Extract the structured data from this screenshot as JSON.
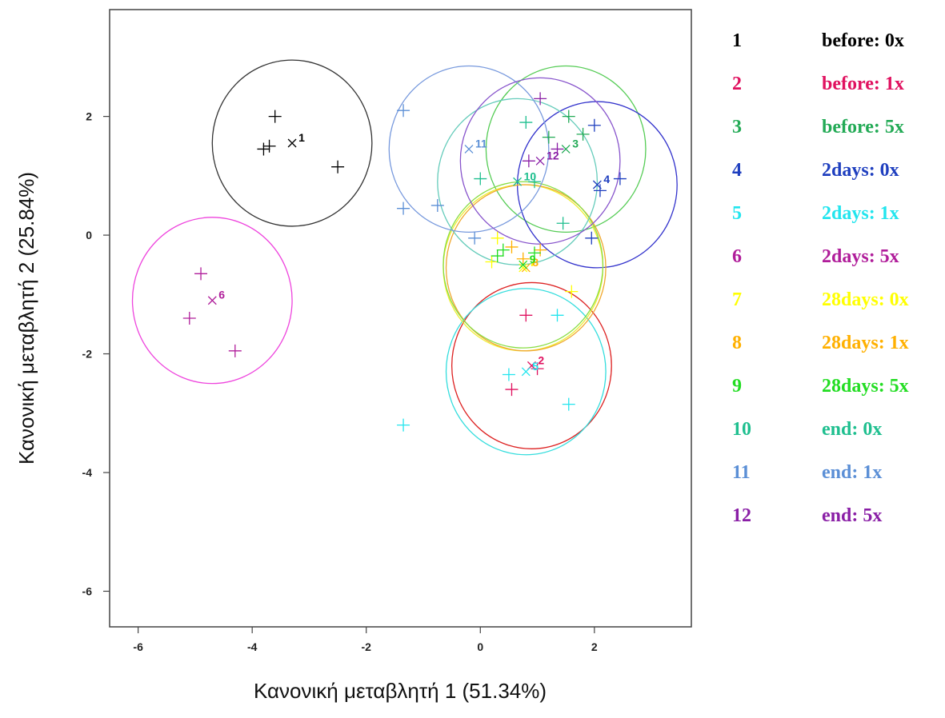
{
  "chart_data": {
    "type": "scatter",
    "xlabel": "Κανονική μεταβλητή 1 (51.34%)",
    "ylabel": "Κανονική μεταβλητή 2 (25.84%)",
    "xlim": [
      -6.5,
      3.7
    ],
    "ylim": [
      -6.6,
      3.8
    ],
    "x_ticks": [
      -6,
      -4,
      -2,
      0,
      2
    ],
    "y_ticks": [
      -6,
      -4,
      -2,
      0,
      2
    ],
    "x_tick_labels": [
      "-6",
      "-4",
      "-2",
      "0",
      "2"
    ],
    "y_tick_labels": [
      "-6",
      "-4",
      "-2",
      "0",
      "2"
    ],
    "grid": false,
    "legend_position": "right",
    "series": [
      {
        "id": "1",
        "name": "before: 0x",
        "color": "#000000",
        "circle_color": "#333333",
        "centroid": [
          -3.3,
          1.55
        ],
        "radius": 1.4,
        "points": [
          [
            -3.6,
            2.0
          ],
          [
            -3.8,
            1.45
          ],
          [
            -3.7,
            1.5
          ],
          [
            -2.5,
            1.15
          ]
        ]
      },
      {
        "id": "2",
        "name": "before: 1x",
        "color": "#e0115f",
        "circle_color": "#dd2222",
        "centroid": [
          0.9,
          -2.2
        ],
        "radius": 1.4,
        "points": [
          [
            0.8,
            -1.35
          ],
          [
            0.55,
            -2.6
          ],
          [
            1.0,
            -2.25
          ]
        ]
      },
      {
        "id": "3",
        "name": "before: 5x",
        "color": "#22aa55",
        "circle_color": "#55cc55",
        "centroid": [
          1.5,
          1.45
        ],
        "radius": 1.4,
        "points": [
          [
            1.55,
            2.0
          ],
          [
            1.8,
            1.7
          ],
          [
            1.2,
            1.65
          ]
        ]
      },
      {
        "id": "4",
        "name": "2days: 0x",
        "color": "#1f3fbf",
        "circle_color": "#3333cc",
        "centroid": [
          2.05,
          0.85
        ],
        "radius": 1.4,
        "points": [
          [
            2.0,
            1.85
          ],
          [
            2.45,
            0.95
          ],
          [
            2.1,
            0.75
          ],
          [
            1.95,
            -0.05
          ]
        ]
      },
      {
        "id": "5",
        "name": "2days: 1x",
        "color": "#22e5ee",
        "circle_color": "#33dddd",
        "centroid": [
          0.8,
          -2.3
        ],
        "radius": 1.4,
        "points": [
          [
            -1.35,
            -3.2
          ],
          [
            1.55,
            -2.85
          ],
          [
            1.35,
            -1.35
          ],
          [
            0.5,
            -2.35
          ]
        ]
      },
      {
        "id": "6",
        "name": "2days: 5x",
        "color": "#b01d9a",
        "circle_color": "#ee44dd",
        "centroid": [
          -4.7,
          -1.1
        ],
        "radius": 1.4,
        "points": [
          [
            -4.9,
            -0.65
          ],
          [
            -5.1,
            -1.4
          ],
          [
            -4.3,
            -1.95
          ]
        ]
      },
      {
        "id": "7",
        "name": "28days: 0x",
        "color": "#ffff00",
        "circle_color": "#eeee33",
        "centroid": [
          0.75,
          -0.55
        ],
        "radius": 1.4,
        "points": [
          [
            0.3,
            -0.05
          ],
          [
            1.6,
            -0.95
          ],
          [
            0.2,
            -0.45
          ]
        ]
      },
      {
        "id": "8",
        "name": "28days: 1x",
        "color": "#ffb000",
        "circle_color": "#f0a830",
        "centroid": [
          0.8,
          -0.55
        ],
        "radius": 1.4,
        "points": [
          [
            0.55,
            -0.2
          ],
          [
            1.05,
            -0.25
          ],
          [
            0.75,
            -0.4
          ]
        ]
      },
      {
        "id": "9",
        "name": "28days: 5x",
        "color": "#22dd22",
        "circle_color": "#88dd44",
        "centroid": [
          0.75,
          -0.5
        ],
        "radius": 1.4,
        "points": [
          [
            0.4,
            -0.25
          ],
          [
            0.95,
            -0.3
          ],
          [
            0.3,
            -0.35
          ]
        ]
      },
      {
        "id": "10",
        "name": "end: 0x",
        "color": "#1fbf8f",
        "circle_color": "#66ccbb",
        "centroid": [
          0.65,
          0.9
        ],
        "radius": 1.4,
        "points": [
          [
            0.8,
            1.9
          ],
          [
            1.45,
            0.2
          ],
          [
            0.0,
            0.95
          ],
          [
            0.95,
            0.9
          ]
        ]
      },
      {
        "id": "11",
        "name": "end: 1x",
        "color": "#5b8fd6",
        "circle_color": "#7799dd",
        "centroid": [
          -0.2,
          1.45
        ],
        "radius": 1.4,
        "points": [
          [
            -1.35,
            2.1
          ],
          [
            -1.35,
            0.45
          ],
          [
            -0.75,
            0.5
          ],
          [
            -0.1,
            -0.05
          ]
        ]
      },
      {
        "id": "12",
        "name": "end: 5x",
        "color": "#8a1fa6",
        "circle_color": "#8855cc",
        "centroid": [
          1.05,
          1.25
        ],
        "radius": 1.4,
        "points": [
          [
            1.05,
            2.3
          ],
          [
            1.35,
            1.45
          ],
          [
            0.85,
            1.25
          ]
        ]
      }
    ]
  }
}
